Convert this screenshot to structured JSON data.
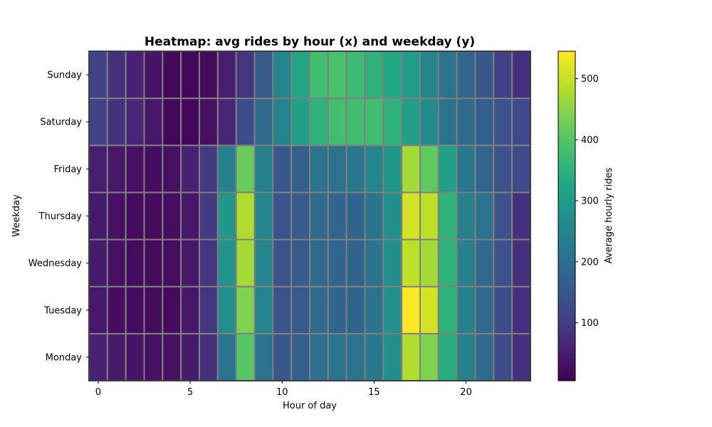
{
  "chart_data": {
    "type": "heatmap",
    "title": "Heatmap: avg rides by hour (x) and weekday (y)",
    "xlabel": "Hour of day",
    "ylabel": "Weekday",
    "x": [
      0,
      1,
      2,
      3,
      4,
      5,
      6,
      7,
      8,
      9,
      10,
      11,
      12,
      13,
      14,
      15,
      16,
      17,
      18,
      19,
      20,
      21,
      22,
      23
    ],
    "x_ticks": [
      0,
      5,
      10,
      15,
      20
    ],
    "y": [
      "Monday",
      "Tuesday",
      "Wednesday",
      "Thursday",
      "Friday",
      "Saturday",
      "Sunday"
    ],
    "colormap": "viridis",
    "grid_color": "#808080",
    "colorbar": {
      "label": "Average hourly rides",
      "min": 5,
      "max": 545,
      "ticks": [
        100,
        200,
        300,
        400,
        500
      ]
    },
    "values": [
      [
        55,
        45,
        35,
        30,
        30,
        45,
        80,
        210,
        400,
        210,
        150,
        170,
        200,
        210,
        210,
        220,
        270,
        480,
        440,
        340,
        240,
        190,
        130,
        80
      ],
      [
        40,
        25,
        20,
        20,
        20,
        40,
        90,
        270,
        440,
        250,
        140,
        160,
        190,
        180,
        180,
        210,
        270,
        545,
        510,
        350,
        240,
        190,
        130,
        80
      ],
      [
        45,
        30,
        20,
        20,
        25,
        40,
        90,
        280,
        470,
        250,
        140,
        160,
        190,
        180,
        180,
        210,
        270,
        490,
        470,
        350,
        240,
        190,
        140,
        80
      ],
      [
        45,
        30,
        20,
        20,
        25,
        40,
        100,
        290,
        480,
        250,
        140,
        160,
        190,
        180,
        180,
        210,
        270,
        510,
        490,
        350,
        240,
        210,
        140,
        80
      ],
      [
        50,
        40,
        30,
        25,
        30,
        55,
        100,
        240,
        420,
        240,
        150,
        170,
        210,
        210,
        220,
        250,
        290,
        470,
        410,
        310,
        220,
        180,
        140,
        120
      ],
      [
        110,
        85,
        65,
        40,
        15,
        15,
        30,
        60,
        130,
        190,
        250,
        310,
        350,
        380,
        380,
        380,
        350,
        310,
        260,
        210,
        190,
        170,
        140,
        120
      ],
      [
        110,
        80,
        55,
        35,
        15,
        15,
        20,
        50,
        90,
        160,
        250,
        320,
        380,
        390,
        370,
        350,
        330,
        300,
        250,
        210,
        180,
        150,
        110,
        80
      ]
    ]
  }
}
